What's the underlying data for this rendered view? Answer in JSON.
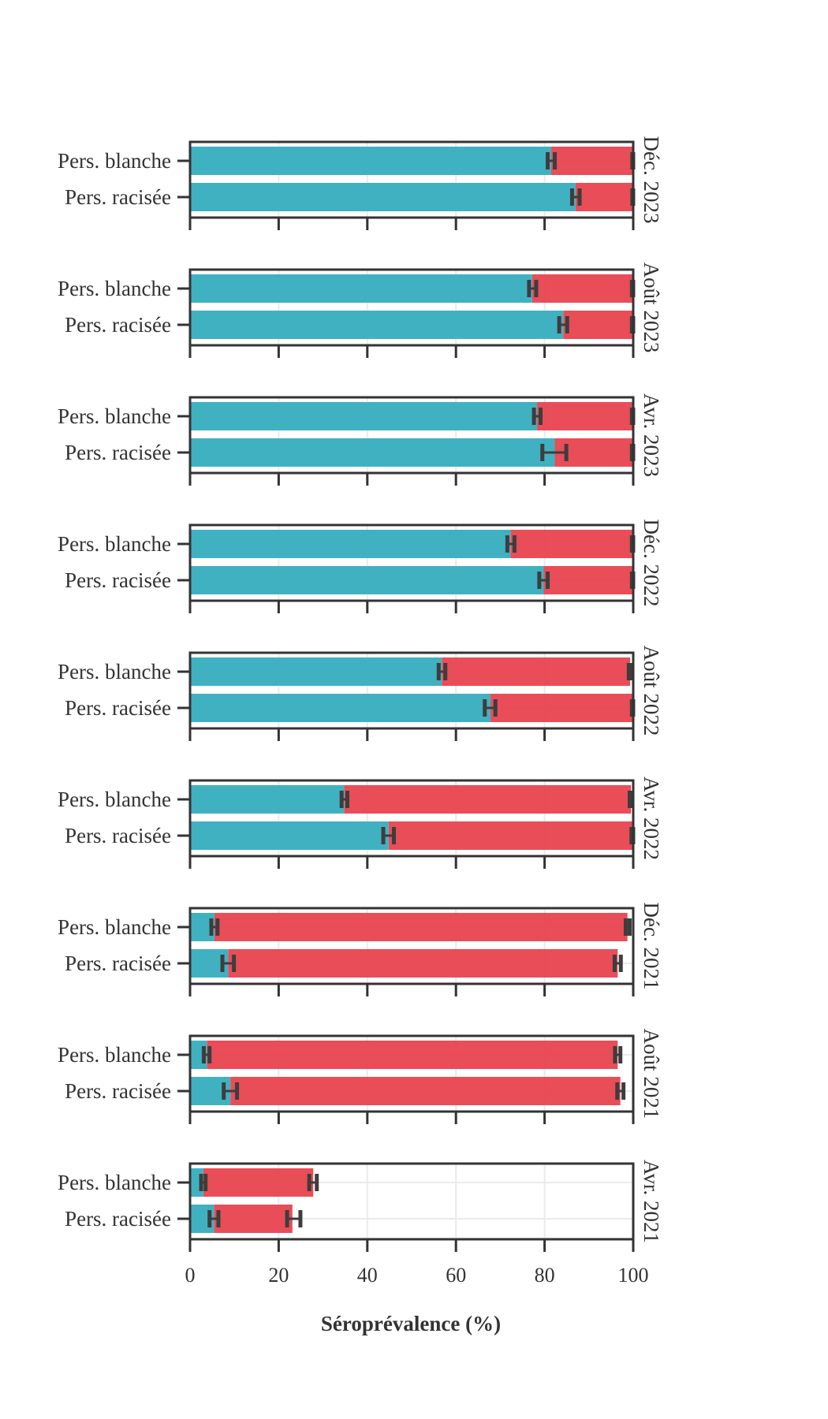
{
  "chart_data": {
    "type": "bar",
    "orientation": "horizontal",
    "stacked": true,
    "xlabel": "Séroprévalence (%)",
    "xlim": [
      0,
      100
    ],
    "xticks": [
      "0",
      "20",
      "40",
      "60",
      "80",
      "100"
    ],
    "grid": true,
    "legend": "none",
    "categories": [
      "Pers. blanche",
      "Pers. racisée"
    ],
    "colors": {
      "series_a": "#3aaebf",
      "series_b": "#e8434e",
      "error_bar": "#3d3d3d"
    },
    "panels": [
      {
        "period": "Déc. 2023",
        "rows": [
          {
            "a": 81.5,
            "a_lo": 80.7,
            "a_hi": 82.3,
            "total": 99.9,
            "t_lo": 99.8,
            "t_hi": 100.0
          },
          {
            "a": 87.0,
            "a_lo": 86.2,
            "a_hi": 87.9,
            "total": 99.9,
            "t_lo": 99.8,
            "t_hi": 100.0
          }
        ]
      },
      {
        "period": "Août 2023",
        "rows": [
          {
            "a": 77.2,
            "a_lo": 76.5,
            "a_hi": 78.1,
            "total": 99.8,
            "t_lo": 99.7,
            "t_hi": 100.0
          },
          {
            "a": 84.2,
            "a_lo": 83.3,
            "a_hi": 85.1,
            "total": 99.8,
            "t_lo": 99.7,
            "t_hi": 100.0
          }
        ]
      },
      {
        "period": "Avr. 2023",
        "rows": [
          {
            "a": 78.3,
            "a_lo": 77.6,
            "a_hi": 79.1,
            "total": 99.8,
            "t_lo": 99.7,
            "t_hi": 100.0
          },
          {
            "a": 82.3,
            "a_lo": 79.5,
            "a_hi": 84.9,
            "total": 99.8,
            "t_lo": 99.7,
            "t_hi": 100.0
          }
        ]
      },
      {
        "period": "Déc. 2022",
        "rows": [
          {
            "a": 72.3,
            "a_lo": 71.6,
            "a_hi": 73.2,
            "total": 99.8,
            "t_lo": 99.7,
            "t_hi": 100.0
          },
          {
            "a": 79.8,
            "a_lo": 78.8,
            "a_hi": 80.7,
            "total": 99.8,
            "t_lo": 99.7,
            "t_hi": 100.0
          }
        ]
      },
      {
        "period": "Août 2022",
        "rows": [
          {
            "a": 56.8,
            "a_lo": 56.1,
            "a_hi": 57.6,
            "total": 99.3,
            "t_lo": 99.0,
            "t_hi": 99.7
          },
          {
            "a": 67.8,
            "a_lo": 66.5,
            "a_hi": 68.9,
            "total": 99.8,
            "t_lo": 99.7,
            "t_hi": 100.0
          }
        ]
      },
      {
        "period": "Avr. 2022",
        "rows": [
          {
            "a": 34.8,
            "a_lo": 34.2,
            "a_hi": 35.5,
            "total": 99.5,
            "t_lo": 99.2,
            "t_hi": 99.8
          },
          {
            "a": 44.8,
            "a_lo": 43.6,
            "a_hi": 46.0,
            "total": 99.8,
            "t_lo": 99.6,
            "t_hi": 100.0
          }
        ]
      },
      {
        "period": "Déc. 2021",
        "rows": [
          {
            "a": 5.5,
            "a_lo": 4.8,
            "a_hi": 6.2,
            "total": 98.7,
            "t_lo": 98.3,
            "t_hi": 99.2
          },
          {
            "a": 8.6,
            "a_lo": 7.3,
            "a_hi": 9.9,
            "total": 96.5,
            "t_lo": 95.8,
            "t_hi": 97.2
          }
        ]
      },
      {
        "period": "Août 2021",
        "rows": [
          {
            "a": 3.8,
            "a_lo": 3.1,
            "a_hi": 4.4,
            "total": 96.5,
            "t_lo": 95.9,
            "t_hi": 97.1
          },
          {
            "a": 9.1,
            "a_lo": 7.6,
            "a_hi": 10.6,
            "total": 97.1,
            "t_lo": 96.4,
            "t_hi": 97.8
          }
        ]
      },
      {
        "period": "Avr. 2021",
        "rows": [
          {
            "a": 3.0,
            "a_lo": 2.5,
            "a_hi": 3.5,
            "total": 27.8,
            "t_lo": 26.9,
            "t_hi": 28.6
          },
          {
            "a": 5.4,
            "a_lo": 4.4,
            "a_hi": 6.4,
            "total": 23.1,
            "t_lo": 21.9,
            "t_hi": 24.9
          }
        ]
      }
    ]
  }
}
